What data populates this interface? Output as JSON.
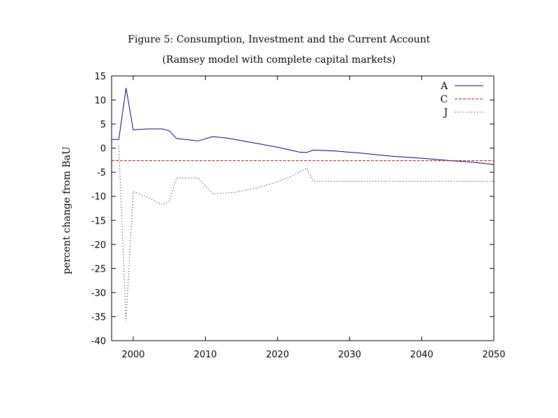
{
  "chart_data": {
    "type": "line",
    "title": "Figure 5: Consumption, Investment and the Current Account",
    "subtitle": "(Ramsey model with complete capital markets)",
    "xlabel": "",
    "ylabel": "percent change from BaU",
    "xlim": [
      1997,
      2050
    ],
    "ylim": [
      -40,
      15
    ],
    "xticks": [
      "2000",
      "2010",
      "2020",
      "2030",
      "2040",
      "2050"
    ],
    "yticks": [
      "15",
      "10",
      "5",
      "0",
      "-5",
      "-10",
      "-15",
      "-20",
      "-25",
      "-30",
      "-35",
      "-40"
    ],
    "grid": false,
    "legend": "top-right",
    "series": [
      {
        "name": "A",
        "color": "#000080",
        "style": "solid",
        "x": [
          1997,
          1998,
          1999,
          2000,
          2002,
          2004,
          2005,
          2006,
          2009,
          2011,
          2013,
          2016,
          2020,
          2023,
          2024,
          2025,
          2028,
          2032,
          2036,
          2040,
          2044,
          2047,
          2050
        ],
        "y": [
          1.8,
          1.8,
          12.5,
          3.8,
          4.0,
          4.0,
          3.6,
          2.0,
          1.5,
          2.4,
          2.1,
          1.3,
          0.2,
          -0.8,
          -0.9,
          -0.4,
          -0.6,
          -1.1,
          -1.7,
          -2.1,
          -2.6,
          -2.9,
          -3.4
        ]
      },
      {
        "name": "C",
        "color": "#cc0000",
        "style": "dashed",
        "x": [
          1997,
          2050
        ],
        "y": [
          -2.6,
          -2.6
        ]
      },
      {
        "name": "J",
        "color": "#000000",
        "style": "dotted",
        "x": [
          1998,
          1999,
          2000,
          2002,
          2004,
          2005,
          2006,
          2009,
          2011,
          2014,
          2017,
          2020,
          2022,
          2024,
          2025,
          2030,
          2040,
          2050
        ],
        "y": [
          0.5,
          -36.0,
          -9.0,
          -10.2,
          -11.8,
          -11.0,
          -6.2,
          -6.2,
          -9.5,
          -9.2,
          -8.3,
          -7.0,
          -5.8,
          -4.2,
          -6.9,
          -6.9,
          -6.9,
          -6.9
        ]
      }
    ]
  }
}
